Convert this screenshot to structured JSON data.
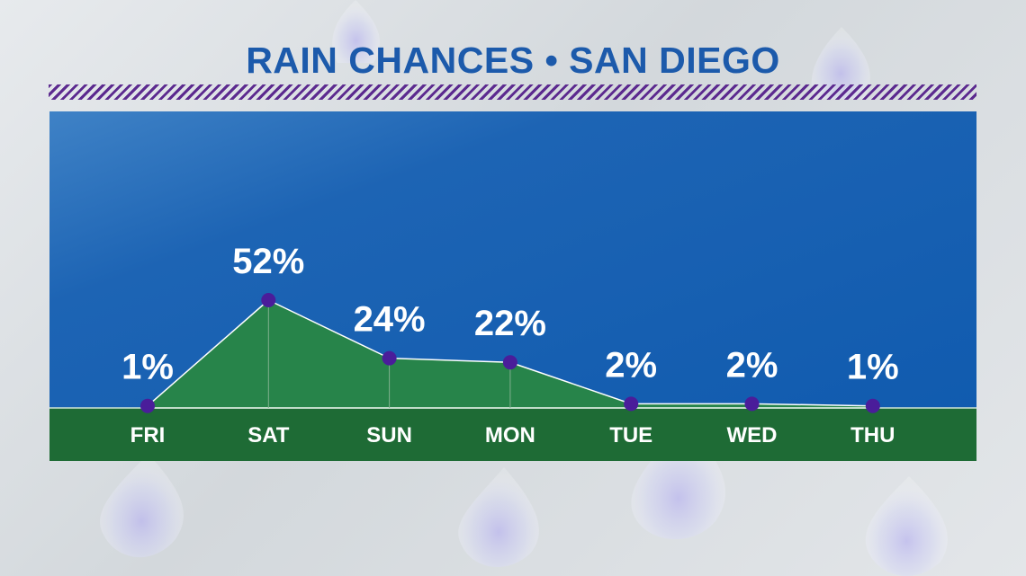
{
  "header": {
    "title": "RAIN CHANCES • SAN DIEGO"
  },
  "colors": {
    "title": "#1c5aab",
    "stripe": "#5c2a8f",
    "sky": "#0f5aae",
    "ground": "#1e6b35",
    "area": "#27844a",
    "marker": "#4a1d9a",
    "text": "#ffffff"
  },
  "chart_data": {
    "type": "area",
    "title": "RAIN CHANCES • SAN DIEGO",
    "xlabel": "",
    "ylabel": "",
    "categories": [
      "FRI",
      "SAT",
      "SUN",
      "MON",
      "TUE",
      "WED",
      "THU"
    ],
    "values": [
      1,
      52,
      24,
      22,
      2,
      2,
      1
    ],
    "value_labels": [
      "1%",
      "52%",
      "24%",
      "22%",
      "2%",
      "2%",
      "1%"
    ],
    "unit": "%",
    "ylim": [
      0,
      100
    ],
    "grid": false,
    "legend": "none"
  }
}
